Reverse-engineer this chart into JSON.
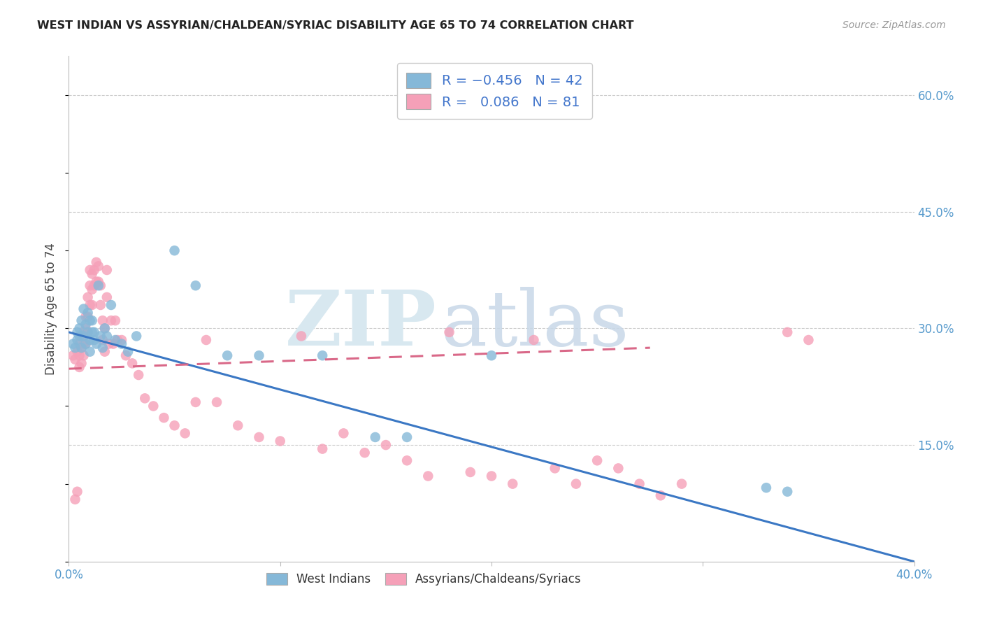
{
  "title": "WEST INDIAN VS ASSYRIAN/CHALDEAN/SYRIAC DISABILITY AGE 65 TO 74 CORRELATION CHART",
  "source": "Source: ZipAtlas.com",
  "ylabel": "Disability Age 65 to 74",
  "xlim": [
    0.0,
    0.4
  ],
  "ylim": [
    0.0,
    0.65
  ],
  "xtick_positions": [
    0.0,
    0.1,
    0.2,
    0.3,
    0.4
  ],
  "xtick_labels": [
    "0.0%",
    "",
    "",
    "",
    "40.0%"
  ],
  "ytick_values": [
    0.15,
    0.3,
    0.45,
    0.6
  ],
  "ytick_labels": [
    "15.0%",
    "30.0%",
    "45.0%",
    "60.0%"
  ],
  "west_indian_R": -0.456,
  "west_indian_N": 42,
  "assyrian_R": 0.086,
  "assyrian_N": 81,
  "west_indian_color": "#85B8D8",
  "assyrian_color": "#F5A0B8",
  "west_indian_line_color": "#3B78C4",
  "assyrian_line_color": "#D96888",
  "background_color": "#FFFFFF",
  "grid_color": "#CCCCCC",
  "legend_label_blue": "West Indians",
  "legend_label_pink": "Assyrians/Chaldeans/Syriacs",
  "wi_line_x0": 0.0,
  "wi_line_y0": 0.295,
  "wi_line_x1": 0.4,
  "wi_line_y1": 0.0,
  "as_line_x0": 0.0,
  "as_line_y0": 0.248,
  "as_line_x1": 0.275,
  "as_line_y1": 0.275,
  "west_indian_x": [
    0.002,
    0.003,
    0.004,
    0.004,
    0.005,
    0.005,
    0.006,
    0.006,
    0.007,
    0.007,
    0.008,
    0.008,
    0.009,
    0.009,
    0.01,
    0.01,
    0.01,
    0.011,
    0.011,
    0.012,
    0.012,
    0.013,
    0.014,
    0.015,
    0.016,
    0.017,
    0.018,
    0.02,
    0.022,
    0.025,
    0.028,
    0.032,
    0.05,
    0.06,
    0.075,
    0.09,
    0.12,
    0.145,
    0.16,
    0.2,
    0.33,
    0.34
  ],
  "west_indian_y": [
    0.28,
    0.275,
    0.295,
    0.285,
    0.3,
    0.29,
    0.31,
    0.275,
    0.325,
    0.29,
    0.305,
    0.28,
    0.32,
    0.295,
    0.31,
    0.285,
    0.27,
    0.295,
    0.31,
    0.285,
    0.295,
    0.28,
    0.355,
    0.29,
    0.275,
    0.3,
    0.29,
    0.33,
    0.285,
    0.28,
    0.27,
    0.29,
    0.4,
    0.355,
    0.265,
    0.265,
    0.265,
    0.16,
    0.16,
    0.265,
    0.095,
    0.09
  ],
  "assyrian_x": [
    0.002,
    0.003,
    0.003,
    0.004,
    0.004,
    0.005,
    0.005,
    0.005,
    0.006,
    0.006,
    0.006,
    0.007,
    0.007,
    0.007,
    0.008,
    0.008,
    0.008,
    0.009,
    0.009,
    0.009,
    0.01,
    0.01,
    0.01,
    0.011,
    0.011,
    0.011,
    0.012,
    0.012,
    0.013,
    0.013,
    0.014,
    0.014,
    0.015,
    0.015,
    0.016,
    0.016,
    0.017,
    0.017,
    0.018,
    0.018,
    0.019,
    0.02,
    0.021,
    0.022,
    0.023,
    0.025,
    0.027,
    0.03,
    0.033,
    0.036,
    0.04,
    0.045,
    0.05,
    0.055,
    0.06,
    0.065,
    0.07,
    0.08,
    0.09,
    0.1,
    0.11,
    0.12,
    0.13,
    0.14,
    0.15,
    0.16,
    0.17,
    0.18,
    0.19,
    0.2,
    0.21,
    0.22,
    0.23,
    0.24,
    0.25,
    0.26,
    0.27,
    0.28,
    0.29,
    0.34,
    0.35
  ],
  "assyrian_y": [
    0.265,
    0.08,
    0.26,
    0.27,
    0.09,
    0.28,
    0.265,
    0.25,
    0.29,
    0.275,
    0.255,
    0.295,
    0.28,
    0.265,
    0.315,
    0.3,
    0.28,
    0.34,
    0.315,
    0.295,
    0.375,
    0.355,
    0.33,
    0.37,
    0.35,
    0.33,
    0.375,
    0.355,
    0.385,
    0.36,
    0.38,
    0.36,
    0.355,
    0.33,
    0.31,
    0.285,
    0.3,
    0.27,
    0.375,
    0.34,
    0.28,
    0.31,
    0.28,
    0.31,
    0.285,
    0.285,
    0.265,
    0.255,
    0.24,
    0.21,
    0.2,
    0.185,
    0.175,
    0.165,
    0.205,
    0.285,
    0.205,
    0.175,
    0.16,
    0.155,
    0.29,
    0.145,
    0.165,
    0.14,
    0.15,
    0.13,
    0.11,
    0.295,
    0.115,
    0.11,
    0.1,
    0.285,
    0.12,
    0.1,
    0.13,
    0.12,
    0.1,
    0.085,
    0.1,
    0.295,
    0.285
  ]
}
